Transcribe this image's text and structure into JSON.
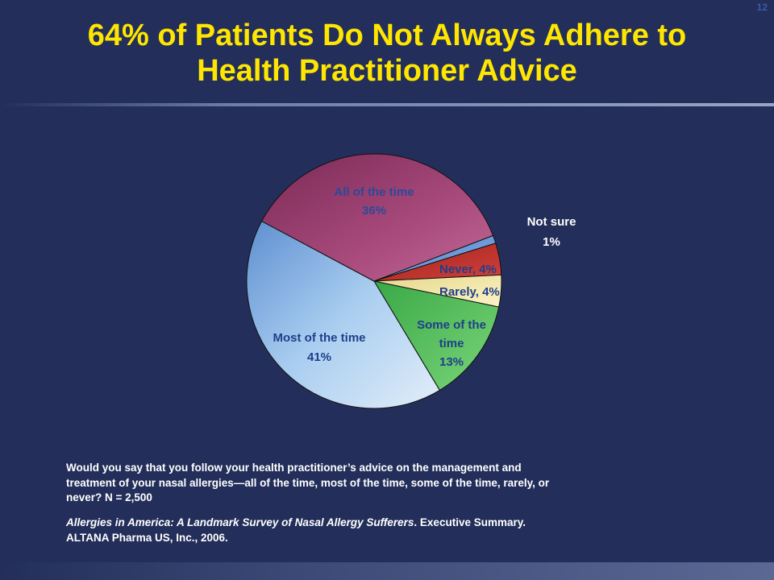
{
  "slide_number": "12",
  "title_line1": "64% of Patients Do Not Always Adhere to",
  "title_line2": "Health Practitioner Advice",
  "chart_data": {
    "type": "pie",
    "title": "",
    "slices": [
      {
        "label": "Not sure",
        "value": 1,
        "value_label": "1%",
        "color": "#5b8fd6"
      },
      {
        "label": "Never",
        "value": 4,
        "value_label": "Never, 4%",
        "color": "#c0302e"
      },
      {
        "label": "Rarely",
        "value": 4,
        "value_label": "Rarely, 4%",
        "color": "#f2e6a0"
      },
      {
        "label": "Some of the time",
        "value": 13,
        "value_label": "13%",
        "color": "#52c45a"
      },
      {
        "label": "Most of the time",
        "value": 41,
        "value_label": "41%",
        "color": "#a9cdf0"
      },
      {
        "label": "All of the time",
        "value": 36,
        "value_label": "36%",
        "color": "#a84a7c"
      }
    ]
  },
  "labels": {
    "all": [
      "All of the time",
      "36%"
    ],
    "most": [
      "Most of the time",
      "41%"
    ],
    "some": [
      "Some of the",
      "time",
      "13%"
    ],
    "rarely": "Rarely, 4%",
    "never": "Never, 4%",
    "not_sure": [
      "Not sure",
      "1%"
    ]
  },
  "question": "Would you say that you follow your health practitioner’s advice on the management and treatment of your nasal allergies—all of the time, most of the time, some of the time, rarely, or never? N = 2,500",
  "source_italic": "Allergies in America: A Landmark Survey of Nasal Allergy Sufferers",
  "source_rest": ". Executive Summary. ALTANA Pharma US, Inc., 2006."
}
